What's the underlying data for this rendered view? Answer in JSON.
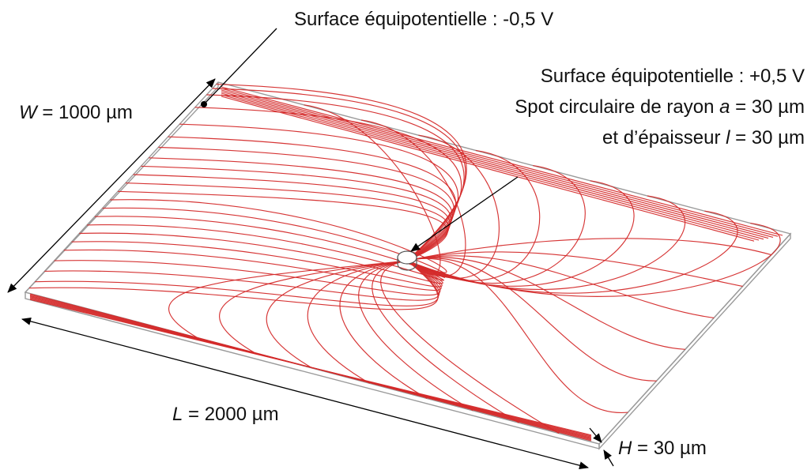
{
  "labels": {
    "equi_neg": "Surface équipotentielle : -0,5 V",
    "equi_pos": "Surface équipotentielle : +0,5 V",
    "spot_line1": "Spot circulaire de rayon ",
    "spot_var_a": "a",
    "spot_val_a": " = 30 µm",
    "spot_line2": "et d’épaisseur ",
    "spot_var_l": "l",
    "spot_val_l": " = 30 µm",
    "w_var": "W",
    "w_val": " = 1000 µm",
    "l_var": "L",
    "l_val": " = 2000 µm",
    "h_var": "H",
    "h_val": " = 30 µm"
  },
  "colors": {
    "field_lines": "#d42a2a",
    "plate_edges": "#9a9a9a",
    "annotation": "#000000"
  }
}
